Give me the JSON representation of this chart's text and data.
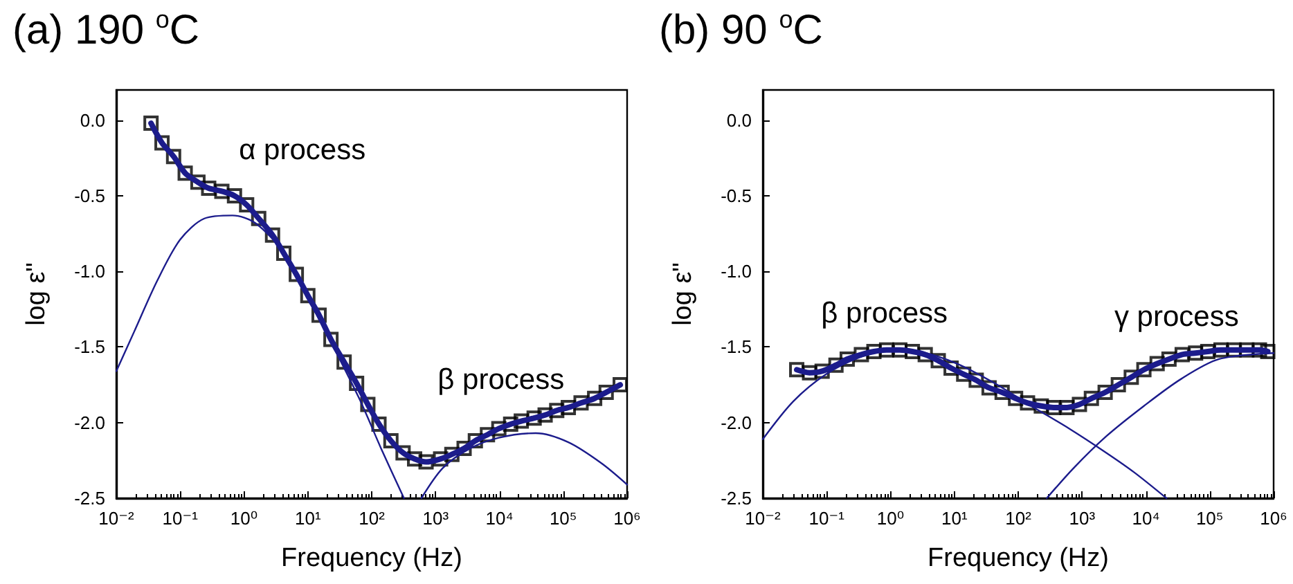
{
  "chart_data": [
    {
      "type": "scatter",
      "title": "(a) 190 $^{o}$C",
      "xlabel": "Frequency (Hz)",
      "ylabel": "log ε\"",
      "log": "x",
      "grid": false,
      "xlim": [
        0.01,
        1000000
      ],
      "ylim": [
        -2.5,
        0.2
      ],
      "xticks": [
        {
          "value": 0.01,
          "label": "10⁻²"
        },
        {
          "value": 0.1,
          "label": "10⁻¹"
        },
        {
          "value": 1,
          "label": "10⁰"
        },
        {
          "value": 10,
          "label": "10¹"
        },
        {
          "value": 100,
          "label": "10²"
        },
        {
          "value": 1000,
          "label": "10³"
        },
        {
          "value": 10000,
          "label": "10⁴"
        },
        {
          "value": 100000,
          "label": "10⁵"
        },
        {
          "value": 1000000,
          "label": "10⁶"
        }
      ],
      "yticks": [
        {
          "value": -2.5,
          "label": "-2.5"
        },
        {
          "value": -2,
          "label": "-2.0"
        },
        {
          "value": -1.5,
          "label": "-1.5"
        },
        {
          "value": -1,
          "label": "-1.0"
        },
        {
          "value": -0.5,
          "label": "-0.5"
        },
        {
          "value": 0,
          "label": "0.0"
        }
      ],
      "annotations": [
        "α process",
        "β process"
      ],
      "series": [
        {
          "type": "scatter",
          "marker": "square",
          "color": "#000000",
          "x": [
            0.035,
            0.052,
            0.079,
            0.12,
            0.19,
            0.28,
            0.45,
            0.71,
            1.1,
            1.7,
            2.8,
            4.2,
            6.6,
            10,
            15,
            23,
            37,
            58,
            87,
            130,
            200,
            310,
            470,
            710,
            1200,
            1800,
            2800,
            4200,
            6500,
            9800,
            15000,
            22000,
            35000,
            52000,
            79000,
            120000,
            190000,
            310000,
            470000,
            780000
          ],
          "values": [
            -0.02,
            -0.15,
            -0.24,
            -0.35,
            -0.41,
            -0.45,
            -0.47,
            -0.5,
            -0.56,
            -0.65,
            -0.76,
            -0.88,
            -1.02,
            -1.16,
            -1.29,
            -1.45,
            -1.6,
            -1.74,
            -1.88,
            -2.01,
            -2.12,
            -2.2,
            -2.24,
            -2.26,
            -2.24,
            -2.21,
            -2.17,
            -2.12,
            -2.08,
            -2.04,
            -2.01,
            -1.99,
            -1.97,
            -1.95,
            -1.92,
            -1.9,
            -1.87,
            -1.84,
            -1.8,
            -1.75
          ]
        },
        {
          "type": "line",
          "marker": "none",
          "color": "#1c1c8c",
          "x": [
            0.035,
            0.052,
            0.079,
            0.12,
            0.19,
            0.28,
            0.45,
            0.71,
            1.1,
            1.7,
            2.8,
            4.2,
            6.6,
            10,
            15,
            23,
            37,
            58,
            87,
            130,
            200,
            310,
            470,
            710,
            1200,
            1800,
            2800,
            4200,
            6500,
            9800,
            15000,
            22000,
            35000,
            52000,
            79000,
            120000,
            190000,
            310000,
            470000,
            780000
          ],
          "values": [
            -0.02,
            -0.15,
            -0.24,
            -0.35,
            -0.41,
            -0.45,
            -0.47,
            -0.5,
            -0.56,
            -0.65,
            -0.76,
            -0.88,
            -1.02,
            -1.16,
            -1.29,
            -1.45,
            -1.6,
            -1.74,
            -1.88,
            -2.01,
            -2.12,
            -2.2,
            -2.24,
            -2.26,
            -2.24,
            -2.21,
            -2.17,
            -2.12,
            -2.08,
            -2.04,
            -2.01,
            -1.99,
            -1.97,
            -1.95,
            -1.92,
            -1.9,
            -1.87,
            -1.84,
            -1.8,
            -1.75
          ]
        },
        {
          "type": "line",
          "marker": "none",
          "color": "#1c1c8c",
          "x": [
            0.01,
            0.019,
            0.044,
            0.1,
            0.24,
            0.66,
            1.5,
            4.2,
            16,
            62,
            140,
            320
          ],
          "values": [
            -1.66,
            -1.4,
            -1.06,
            -0.79,
            -0.65,
            -0.63,
            -0.68,
            -0.88,
            -1.34,
            -1.83,
            -2.17,
            -2.5
          ]
        },
        {
          "type": "line",
          "marker": "none",
          "color": "#1c1c8c",
          "x": [
            600,
            1300,
            3500,
            9800,
            37000,
            120000,
            400000,
            1000000
          ],
          "values": [
            -2.5,
            -2.3,
            -2.17,
            -2.1,
            -2.07,
            -2.13,
            -2.27,
            -2.41
          ]
        }
      ]
    },
    {
      "type": "scatter",
      "title": "(b) 90 $^{o}$C",
      "xlabel": "Frequency (Hz)",
      "ylabel": "log ε\"",
      "log": "x",
      "grid": false,
      "xlim": [
        0.01,
        1000000
      ],
      "ylim": [
        -2.5,
        0.2
      ],
      "xticks": [
        {
          "value": 0.01,
          "label": "10⁻²"
        },
        {
          "value": 0.1,
          "label": "10⁻¹"
        },
        {
          "value": 1,
          "label": "10⁰"
        },
        {
          "value": 10,
          "label": "10¹"
        },
        {
          "value": 100,
          "label": "10²"
        },
        {
          "value": 1000,
          "label": "10³"
        },
        {
          "value": 10000,
          "label": "10⁴"
        },
        {
          "value": 100000,
          "label": "10⁵"
        },
        {
          "value": 1000000,
          "label": "10⁶"
        }
      ],
      "yticks": [
        {
          "value": -2.5,
          "label": "-2.5"
        },
        {
          "value": -2,
          "label": "-2.0"
        },
        {
          "value": -1.5,
          "label": "-1.5"
        },
        {
          "value": -1,
          "label": "-1.0"
        },
        {
          "value": -0.5,
          "label": "-0.5"
        },
        {
          "value": 0,
          "label": "0.0"
        }
      ],
      "annotations": [
        "β process",
        "γ process"
      ],
      "series": [
        {
          "type": "scatter",
          "marker": "square",
          "color": "#000000",
          "x": [
            0.034,
            0.054,
            0.085,
            0.14,
            0.21,
            0.35,
            0.55,
            0.87,
            1.4,
            2.2,
            3.5,
            5.6,
            8.9,
            14,
            22,
            35,
            56,
            91,
            140,
            230,
            360,
            580,
            910,
            1400,
            2300,
            3700,
            5900,
            9300,
            15000,
            23000,
            37000,
            60000,
            93000,
            150000,
            240000,
            380000,
            600000,
            810000
          ],
          "values": [
            -1.65,
            -1.67,
            -1.66,
            -1.62,
            -1.58,
            -1.55,
            -1.53,
            -1.52,
            -1.52,
            -1.53,
            -1.55,
            -1.59,
            -1.64,
            -1.68,
            -1.72,
            -1.77,
            -1.8,
            -1.84,
            -1.87,
            -1.89,
            -1.9,
            -1.9,
            -1.88,
            -1.84,
            -1.8,
            -1.75,
            -1.7,
            -1.65,
            -1.61,
            -1.58,
            -1.55,
            -1.54,
            -1.53,
            -1.52,
            -1.52,
            -1.52,
            -1.52,
            -1.53
          ]
        },
        {
          "type": "line",
          "marker": "none",
          "color": "#1c1c8c",
          "x": [
            0.034,
            0.054,
            0.085,
            0.14,
            0.21,
            0.35,
            0.55,
            0.87,
            1.4,
            2.2,
            3.5,
            5.6,
            8.9,
            14,
            22,
            35,
            56,
            91,
            140,
            230,
            360,
            580,
            910,
            1400,
            2300,
            3700,
            5900,
            9300,
            15000,
            23000,
            37000,
            60000,
            93000,
            150000,
            240000,
            380000,
            600000,
            810000
          ],
          "values": [
            -1.65,
            -1.67,
            -1.66,
            -1.62,
            -1.58,
            -1.55,
            -1.53,
            -1.52,
            -1.52,
            -1.53,
            -1.55,
            -1.59,
            -1.64,
            -1.68,
            -1.72,
            -1.77,
            -1.8,
            -1.84,
            -1.87,
            -1.89,
            -1.9,
            -1.9,
            -1.88,
            -1.84,
            -1.8,
            -1.75,
            -1.7,
            -1.65,
            -1.61,
            -1.58,
            -1.55,
            -1.54,
            -1.53,
            -1.52,
            -1.52,
            -1.52,
            -1.52,
            -1.53
          ]
        },
        {
          "type": "line",
          "marker": "none",
          "color": "#1c1c8c",
          "x": [
            0.01,
            0.03,
            0.098,
            0.32,
            1.0,
            2.8,
            11,
            43,
            160,
            630,
            2400,
            6600,
            21000
          ],
          "values": [
            -2.11,
            -1.86,
            -1.68,
            -1.57,
            -1.52,
            -1.53,
            -1.61,
            -1.74,
            -1.89,
            -2.04,
            -2.2,
            -2.33,
            -2.5
          ]
        },
        {
          "type": "line",
          "marker": "none",
          "color": "#1c1c8c",
          "x": [
            280,
            740,
            2400,
            9300,
            36000,
            140000,
            1000000
          ],
          "values": [
            -2.5,
            -2.3,
            -2.09,
            -1.89,
            -1.71,
            -1.58,
            -1.54
          ]
        }
      ]
    }
  ]
}
